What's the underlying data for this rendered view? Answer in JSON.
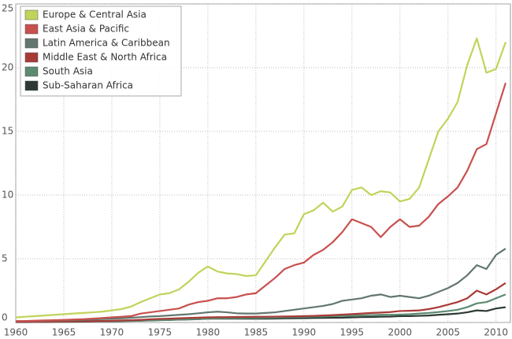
{
  "chart_data": {
    "type": "line",
    "x": [
      1960,
      1961,
      1962,
      1963,
      1964,
      1965,
      1966,
      1967,
      1968,
      1969,
      1970,
      1971,
      1972,
      1973,
      1974,
      1975,
      1976,
      1977,
      1978,
      1979,
      1980,
      1981,
      1982,
      1983,
      1984,
      1985,
      1986,
      1987,
      1988,
      1989,
      1990,
      1991,
      1992,
      1993,
      1994,
      1995,
      1996,
      1997,
      1998,
      1999,
      2000,
      2001,
      2002,
      2003,
      2004,
      2005,
      2006,
      2007,
      2008,
      2009,
      2010,
      2011
    ],
    "series": [
      {
        "name": "Europe & Central Asia",
        "color": "#c2d35a",
        "values": [
          0.4,
          0.45,
          0.5,
          0.55,
          0.6,
          0.65,
          0.7,
          0.75,
          0.8,
          0.85,
          0.95,
          1.05,
          1.25,
          1.6,
          1.9,
          2.2,
          2.3,
          2.6,
          3.2,
          3.9,
          4.4,
          4.0,
          3.85,
          3.8,
          3.65,
          3.7,
          4.8,
          5.9,
          6.9,
          7.0,
          8.5,
          8.8,
          9.4,
          8.7,
          9.1,
          10.4,
          10.6,
          10.0,
          10.3,
          10.2,
          9.5,
          9.7,
          10.6,
          12.8,
          15.0,
          16.0,
          17.3,
          20.2,
          22.3,
          19.6,
          19.9,
          22.0
        ]
      },
      {
        "name": "East Asia & Pacific",
        "color": "#c8504e",
        "values": [
          0.1,
          0.12,
          0.14,
          0.16,
          0.18,
          0.2,
          0.23,
          0.26,
          0.3,
          0.35,
          0.4,
          0.45,
          0.5,
          0.7,
          0.8,
          0.9,
          1.0,
          1.1,
          1.4,
          1.6,
          1.7,
          1.9,
          1.9,
          2.0,
          2.2,
          2.3,
          2.9,
          3.5,
          4.2,
          4.5,
          4.7,
          5.3,
          5.7,
          6.3,
          7.1,
          8.1,
          7.8,
          7.5,
          6.7,
          7.5,
          8.1,
          7.5,
          7.6,
          8.3,
          9.3,
          9.9,
          10.6,
          11.9,
          13.6,
          14.0,
          16.4,
          18.8
        ]
      },
      {
        "name": "Latin America & Caribbean",
        "color": "#62776f",
        "values": [
          0.1,
          0.11,
          0.12,
          0.13,
          0.15,
          0.17,
          0.19,
          0.21,
          0.24,
          0.27,
          0.3,
          0.33,
          0.37,
          0.42,
          0.47,
          0.5,
          0.55,
          0.6,
          0.65,
          0.72,
          0.8,
          0.85,
          0.8,
          0.72,
          0.7,
          0.7,
          0.75,
          0.8,
          0.9,
          1.0,
          1.1,
          1.2,
          1.3,
          1.45,
          1.7,
          1.8,
          1.9,
          2.1,
          2.2,
          2.0,
          2.1,
          2.0,
          1.9,
          2.1,
          2.4,
          2.7,
          3.1,
          3.7,
          4.5,
          4.2,
          5.3,
          5.8
        ]
      },
      {
        "name": "Middle East & North Africa",
        "color": "#a83a36",
        "values": [
          0.05,
          0.05,
          0.06,
          0.06,
          0.07,
          0.08,
          0.09,
          0.1,
          0.11,
          0.12,
          0.14,
          0.16,
          0.18,
          0.21,
          0.25,
          0.28,
          0.3,
          0.33,
          0.36,
          0.38,
          0.4,
          0.42,
          0.42,
          0.43,
          0.44,
          0.45,
          0.45,
          0.46,
          0.47,
          0.48,
          0.5,
          0.52,
          0.55,
          0.58,
          0.62,
          0.66,
          0.7,
          0.75,
          0.78,
          0.82,
          0.9,
          0.92,
          0.95,
          1.05,
          1.2,
          1.4,
          1.6,
          1.9,
          2.5,
          2.2,
          2.6,
          3.1
        ]
      },
      {
        "name": "South Asia",
        "color": "#5d8a72",
        "values": [
          0.05,
          0.05,
          0.05,
          0.06,
          0.06,
          0.07,
          0.08,
          0.09,
          0.1,
          0.11,
          0.12,
          0.13,
          0.14,
          0.15,
          0.17,
          0.19,
          0.21,
          0.23,
          0.25,
          0.27,
          0.3,
          0.32,
          0.33,
          0.34,
          0.35,
          0.36,
          0.37,
          0.38,
          0.4,
          0.42,
          0.44,
          0.46,
          0.48,
          0.5,
          0.52,
          0.54,
          0.56,
          0.58,
          0.6,
          0.6,
          0.62,
          0.65,
          0.7,
          0.75,
          0.82,
          0.9,
          1.0,
          1.2,
          1.5,
          1.6,
          1.9,
          2.2
        ]
      },
      {
        "name": "Sub-Saharan Africa",
        "color": "#2c3a33",
        "values": [
          0.03,
          0.03,
          0.04,
          0.04,
          0.05,
          0.05,
          0.06,
          0.07,
          0.08,
          0.09,
          0.1,
          0.11,
          0.12,
          0.14,
          0.16,
          0.18,
          0.2,
          0.22,
          0.24,
          0.26,
          0.3,
          0.31,
          0.3,
          0.3,
          0.3,
          0.3,
          0.3,
          0.31,
          0.32,
          0.33,
          0.34,
          0.35,
          0.36,
          0.37,
          0.38,
          0.4,
          0.42,
          0.43,
          0.45,
          0.46,
          0.5,
          0.5,
          0.52,
          0.55,
          0.6,
          0.65,
          0.7,
          0.8,
          0.95,
          0.9,
          1.1,
          1.2
        ]
      }
    ],
    "xlim": [
      1960,
      2011.5
    ],
    "xticks": [
      1960,
      1965,
      1970,
      1975,
      1980,
      1985,
      1990,
      1995,
      2000,
      2005,
      2010
    ],
    "ylim": [
      0,
      25
    ],
    "yticks": [
      0,
      5,
      10,
      15,
      20,
      25
    ],
    "grid": true,
    "legend": "top-left"
  }
}
